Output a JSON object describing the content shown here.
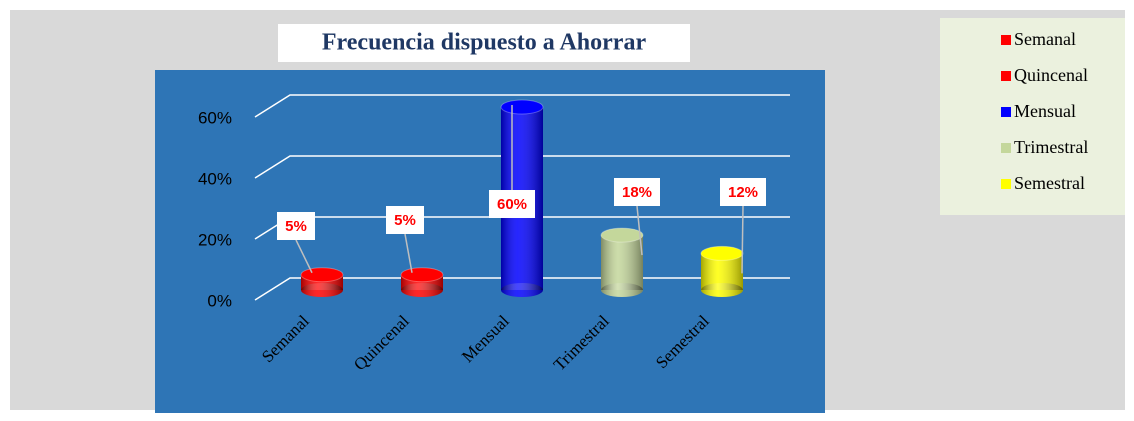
{
  "chart_data": {
    "type": "bar3d",
    "title": "Frecuencia dispuesto a Ahorrar",
    "categories": [
      "Semanal",
      "Quincenal",
      "Mensual",
      "Trimestral",
      "Semestral"
    ],
    "values": [
      5,
      5,
      60,
      18,
      12
    ],
    "value_labels": [
      "5%",
      "5%",
      "60%",
      "18%",
      "12%"
    ],
    "colors": [
      "#ff0000",
      "#ff0000",
      "#0000ff",
      "#c4d79b",
      "#ffff00"
    ],
    "ylim": [
      0,
      60
    ],
    "yticks": [
      {
        "value": 0,
        "label": "0%"
      },
      {
        "value": 20,
        "label": "20%"
      },
      {
        "value": 40,
        "label": "40%"
      },
      {
        "value": 60,
        "label": "60%"
      }
    ],
    "grid": true,
    "legend": "right"
  }
}
